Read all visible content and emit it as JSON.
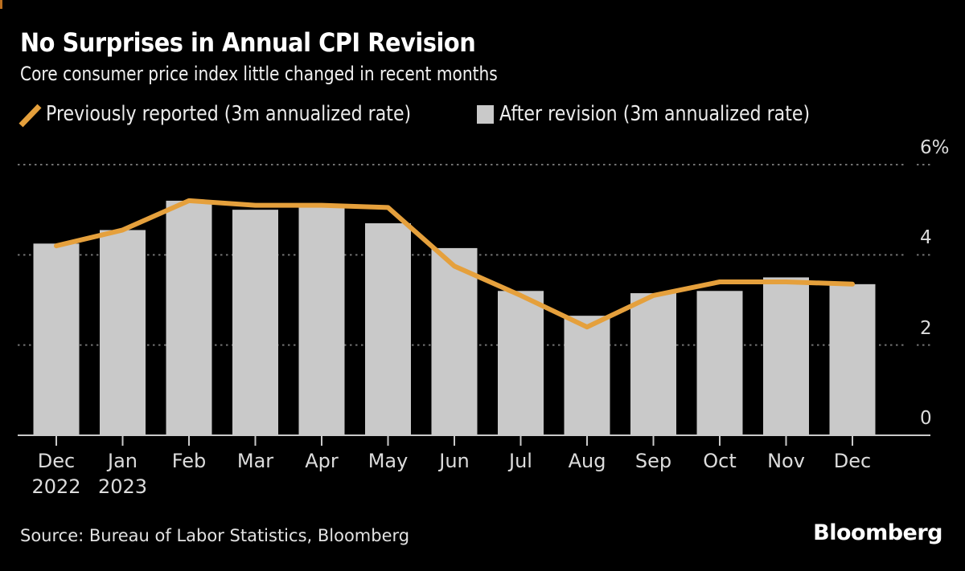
{
  "header": {
    "title": "No Surprises in Annual CPI Revision",
    "subtitle": "Core consumer price index little changed in recent months"
  },
  "legend": [
    {
      "label": "Previously reported (3m annualized rate)",
      "swatch": "slash-line",
      "color": "#E5A03C"
    },
    {
      "label": "After revision (3m annualized rate)",
      "swatch": "square",
      "color": "#C9C9C9"
    }
  ],
  "footer": {
    "source": "Source: Bureau of Labor Statistics, Bloomberg",
    "brand": "Bloomberg"
  },
  "chart_data": {
    "type": "bar+line",
    "title": "No Surprises in Annual CPI Revision",
    "categories": [
      "Dec",
      "Jan",
      "Feb",
      "Mar",
      "Apr",
      "May",
      "Jun",
      "Jul",
      "Aug",
      "Sep",
      "Oct",
      "Nov",
      "Dec"
    ],
    "category_sublabels": [
      "2022",
      "2023",
      "",
      "",
      "",
      "",
      "",
      "",
      "",
      "",
      "",
      "",
      ""
    ],
    "series": [
      {
        "name": "Previously reported (3m annualized rate)",
        "type": "line",
        "color": "#E5A03C",
        "values": [
          4.2,
          4.55,
          5.2,
          5.1,
          5.1,
          5.05,
          3.75,
          3.1,
          2.4,
          3.1,
          3.4,
          3.4,
          3.35
        ]
      },
      {
        "name": "After revision (3m annualized rate)",
        "type": "bar",
        "color": "#C9C9C9",
        "values": [
          4.25,
          4.55,
          5.2,
          5.0,
          5.05,
          4.7,
          4.15,
          3.2,
          2.65,
          3.15,
          3.2,
          3.5,
          3.35
        ]
      }
    ],
    "yticks": [
      {
        "value": 6,
        "label": "6%"
      },
      {
        "value": 4,
        "label": "4"
      },
      {
        "value": 2,
        "label": "2"
      },
      {
        "value": 0,
        "label": "0"
      }
    ],
    "ylim": [
      0,
      6
    ],
    "unit": "%",
    "grid": "dotted-horizontal",
    "grid_color": "#727272",
    "axis_color": "#C9C9C9",
    "label_color": "#DCDCDC",
    "background": "#000000",
    "legend_position": "top"
  }
}
